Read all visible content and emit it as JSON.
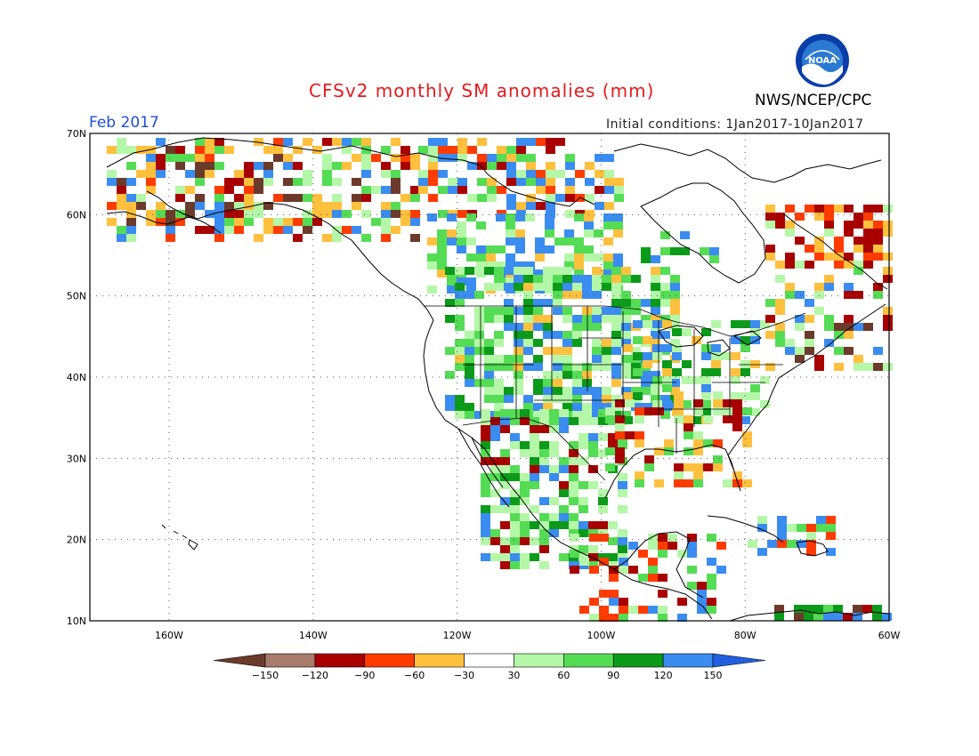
{
  "header": {
    "title": "CFSv2 monthly SM anomalies (mm)",
    "period": "Feb 2017",
    "initial_conditions": "Initial conditions: 1Jan2017-10Jan2017",
    "agency": "NWS/NCEP/CPC",
    "logo_text": "NOAA"
  },
  "map": {
    "lat_labels": [
      "70N",
      "60N",
      "50N",
      "40N",
      "30N",
      "20N",
      "10N"
    ],
    "lon_labels": [
      "160W",
      "140W",
      "120W",
      "100W",
      "80W",
      "60W"
    ],
    "lat_range": [
      10,
      70
    ],
    "lon_range": [
      -171,
      -60
    ]
  },
  "legend": {
    "labels": [
      "-150",
      "-120",
      "-90",
      "-60",
      "-30",
      "30",
      "60",
      "90",
      "120",
      "150"
    ],
    "colors": [
      "#6b3a2a",
      "#a87b6b",
      "#a80000",
      "#ff3b00",
      "#ffc03d",
      "#ffffff",
      "#b5f7a8",
      "#55dc55",
      "#0c9a1a",
      "#3a8cf0",
      "#2060e0"
    ]
  }
}
